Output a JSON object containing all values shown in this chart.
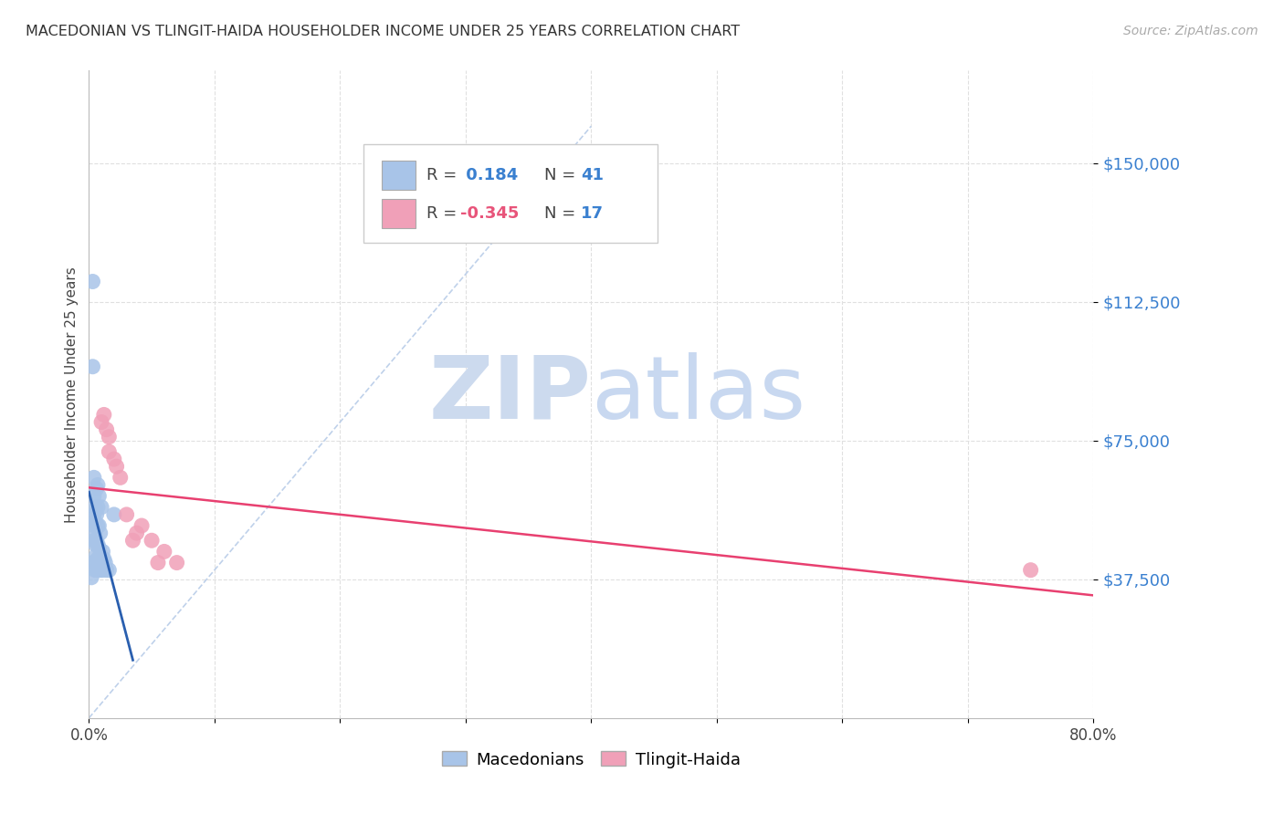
{
  "title": "MACEDONIAN VS TLINGIT-HAIDA HOUSEHOLDER INCOME UNDER 25 YEARS CORRELATION CHART",
  "source": "Source: ZipAtlas.com",
  "ylabel": "Householder Income Under 25 years",
  "xlim": [
    0.0,
    0.8
  ],
  "ylim": [
    0,
    175000
  ],
  "yticks": [
    37500,
    75000,
    112500,
    150000
  ],
  "ytick_labels": [
    "$37,500",
    "$75,000",
    "$112,500",
    "$150,000"
  ],
  "xticks": [
    0.0,
    0.1,
    0.2,
    0.3,
    0.4,
    0.5,
    0.6,
    0.7,
    0.8
  ],
  "xtick_labels": [
    "0.0%",
    "",
    "",
    "",
    "",
    "",
    "",
    "",
    "80.0%"
  ],
  "background_color": "#ffffff",
  "grid_color": "#e0e0e0",
  "macedonian_color": "#a8c4e8",
  "tlingit_color": "#f0a0b8",
  "macedonian_line_color": "#2a5faf",
  "tlingit_line_color": "#e84070",
  "diagonal_color": "#b8cce8",
  "R_macedonian": 0.184,
  "N_macedonian": 41,
  "R_tlingit": -0.345,
  "N_tlingit": 17,
  "macedonian_x": [
    0.002,
    0.003,
    0.003,
    0.003,
    0.004,
    0.004,
    0.004,
    0.004,
    0.004,
    0.005,
    0.005,
    0.005,
    0.005,
    0.005,
    0.005,
    0.006,
    0.006,
    0.006,
    0.006,
    0.007,
    0.007,
    0.007,
    0.007,
    0.007,
    0.007,
    0.008,
    0.008,
    0.008,
    0.008,
    0.009,
    0.009,
    0.009,
    0.01,
    0.01,
    0.011,
    0.011,
    0.012,
    0.013,
    0.014,
    0.016,
    0.02
  ],
  "macedonian_y": [
    38000,
    42000,
    118000,
    95000,
    48000,
    52000,
    55000,
    60000,
    65000,
    40000,
    42000,
    47000,
    50000,
    53000,
    57000,
    44000,
    48000,
    55000,
    62000,
    40000,
    43000,
    47000,
    52000,
    57000,
    63000,
    42000,
    46000,
    52000,
    60000,
    40000,
    44000,
    50000,
    42000,
    57000,
    40000,
    45000,
    43000,
    42000,
    40000,
    40000,
    55000
  ],
  "tlingit_x": [
    0.01,
    0.012,
    0.014,
    0.016,
    0.016,
    0.02,
    0.022,
    0.025,
    0.03,
    0.035,
    0.038,
    0.042,
    0.05,
    0.055,
    0.06,
    0.07,
    0.75
  ],
  "tlingit_y": [
    80000,
    82000,
    78000,
    76000,
    72000,
    70000,
    68000,
    65000,
    55000,
    48000,
    50000,
    52000,
    48000,
    42000,
    45000,
    42000,
    40000
  ],
  "watermark_zip_color": "#ccdaee",
  "watermark_atlas_color": "#c8d8f0",
  "legend_R_color_mac": "#3a80d0",
  "legend_R_color_tlin": "#e8547a",
  "legend_N_color": "#3a80d0"
}
